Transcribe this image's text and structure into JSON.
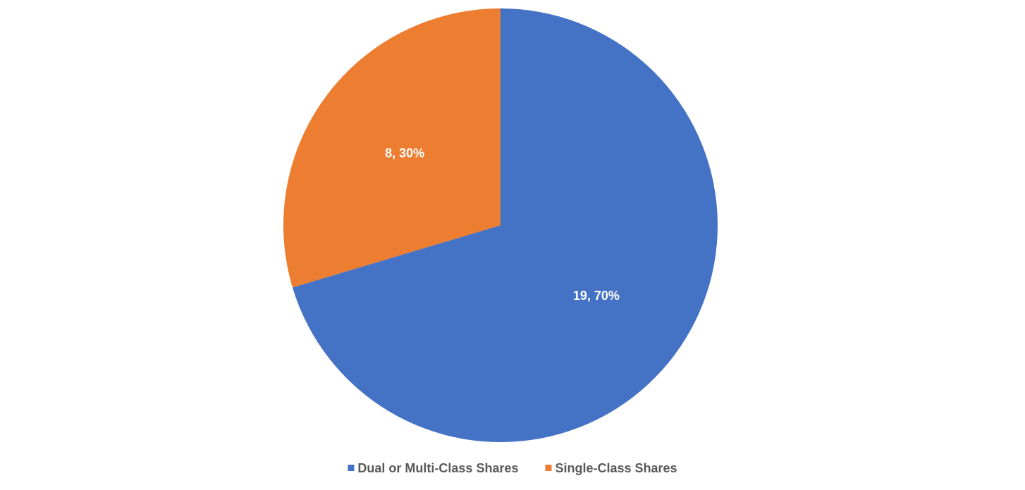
{
  "chart_data": {
    "type": "pie",
    "categories": [
      "Dual or Multi-Class Shares",
      "Single-Class Shares"
    ],
    "values": [
      19,
      8
    ],
    "value_labels": [
      "19, 70%",
      "8, 30%"
    ],
    "colors": [
      "#4472c4",
      "#ed7d31"
    ],
    "legend": "bottom"
  }
}
